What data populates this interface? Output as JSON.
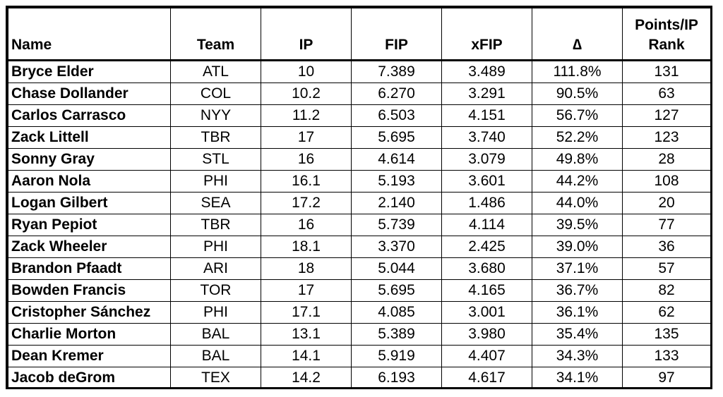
{
  "headers": {
    "name": "Name",
    "team": "Team",
    "ip": "IP",
    "fip": "FIP",
    "xfip": "xFIP",
    "delta": "∆",
    "rank_line1": "Points/IP",
    "rank_line2": "Rank"
  },
  "rows": [
    {
      "name": "Bryce Elder",
      "team": "ATL",
      "ip": "10",
      "fip": "7.389",
      "xfip": "3.489",
      "delta": "111.8%",
      "rank": "131"
    },
    {
      "name": "Chase Dollander",
      "team": "COL",
      "ip": "10.2",
      "fip": "6.270",
      "xfip": "3.291",
      "delta": "90.5%",
      "rank": "63"
    },
    {
      "name": "Carlos Carrasco",
      "team": "NYY",
      "ip": "11.2",
      "fip": "6.503",
      "xfip": "4.151",
      "delta": "56.7%",
      "rank": "127"
    },
    {
      "name": "Zack Littell",
      "team": "TBR",
      "ip": "17",
      "fip": "5.695",
      "xfip": "3.740",
      "delta": "52.2%",
      "rank": "123"
    },
    {
      "name": "Sonny Gray",
      "team": "STL",
      "ip": "16",
      "fip": "4.614",
      "xfip": "3.079",
      "delta": "49.8%",
      "rank": "28"
    },
    {
      "name": "Aaron Nola",
      "team": "PHI",
      "ip": "16.1",
      "fip": "5.193",
      "xfip": "3.601",
      "delta": "44.2%",
      "rank": "108"
    },
    {
      "name": "Logan Gilbert",
      "team": "SEA",
      "ip": "17.2",
      "fip": "2.140",
      "xfip": "1.486",
      "delta": "44.0%",
      "rank": "20"
    },
    {
      "name": "Ryan Pepiot",
      "team": "TBR",
      "ip": "16",
      "fip": "5.739",
      "xfip": "4.114",
      "delta": "39.5%",
      "rank": "77"
    },
    {
      "name": "Zack Wheeler",
      "team": "PHI",
      "ip": "18.1",
      "fip": "3.370",
      "xfip": "2.425",
      "delta": "39.0%",
      "rank": "36"
    },
    {
      "name": "Brandon Pfaadt",
      "team": "ARI",
      "ip": "18",
      "fip": "5.044",
      "xfip": "3.680",
      "delta": "37.1%",
      "rank": "57"
    },
    {
      "name": "Bowden Francis",
      "team": "TOR",
      "ip": "17",
      "fip": "5.695",
      "xfip": "4.165",
      "delta": "36.7%",
      "rank": "82"
    },
    {
      "name": "Cristopher Sánchez",
      "team": "PHI",
      "ip": "17.1",
      "fip": "4.085",
      "xfip": "3.001",
      "delta": "36.1%",
      "rank": "62"
    },
    {
      "name": "Charlie Morton",
      "team": "BAL",
      "ip": "13.1",
      "fip": "5.389",
      "xfip": "3.980",
      "delta": "35.4%",
      "rank": "135"
    },
    {
      "name": "Dean Kremer",
      "team": "BAL",
      "ip": "14.1",
      "fip": "5.919",
      "xfip": "4.407",
      "delta": "34.3%",
      "rank": "133"
    },
    {
      "name": "Jacob deGrom",
      "team": "TEX",
      "ip": "14.2",
      "fip": "6.193",
      "xfip": "4.617",
      "delta": "34.1%",
      "rank": "97"
    }
  ]
}
